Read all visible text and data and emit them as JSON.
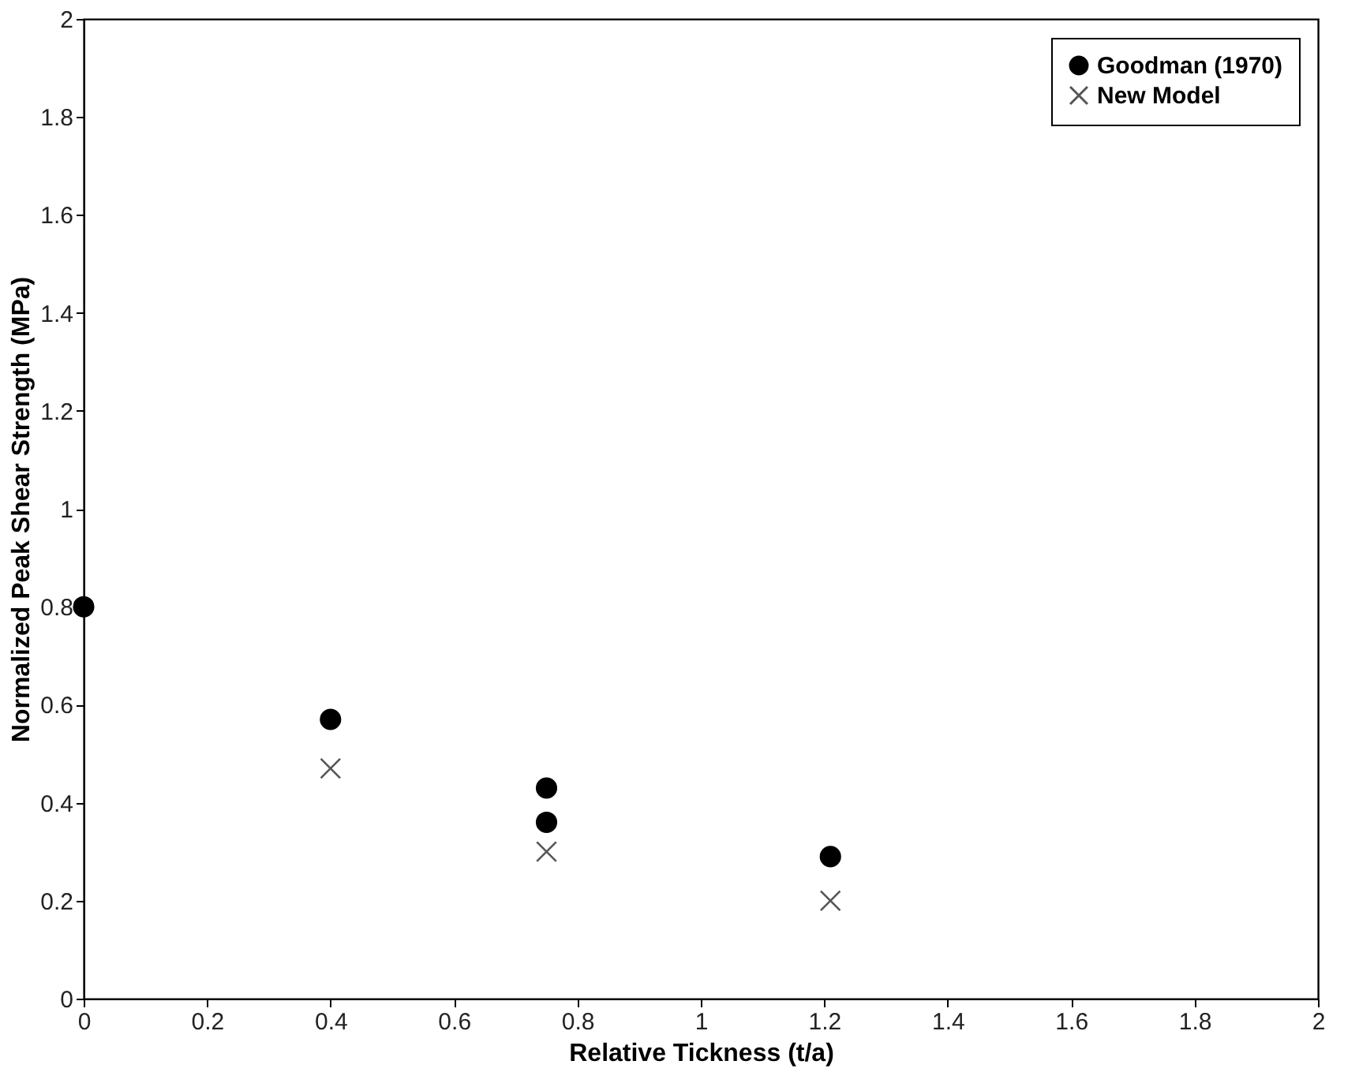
{
  "chart_data": {
    "type": "scatter",
    "xlabel": "Relative Tickness (t/a)",
    "ylabel": "Normalized Peak Shear Strength (MPa)",
    "xlim": [
      0,
      2
    ],
    "xticks": [
      0,
      0.2,
      0.4,
      0.6,
      0.8,
      1,
      1.2,
      1.4,
      1.6,
      1.8,
      2
    ],
    "ylim": [
      0,
      2
    ],
    "yticks": [
      0,
      0.2,
      0.4,
      0.6,
      0.8,
      1,
      1.2,
      1.4,
      1.6,
      1.8,
      2
    ],
    "grid": false,
    "legend": "top right",
    "series": [
      {
        "name": "Goodman (1970)",
        "color": "#000000",
        "marker": "circle",
        "x": [
          0,
          0.4,
          0.75,
          0.75,
          1.21
        ],
        "values": [
          0.8,
          0.57,
          0.43,
          0.36,
          0.29
        ]
      },
      {
        "name": "New Model",
        "color": "#555555",
        "marker": "cross",
        "x": [
          0.4,
          0.75,
          1.21
        ],
        "values": [
          0.47,
          0.3,
          0.2
        ]
      }
    ]
  }
}
